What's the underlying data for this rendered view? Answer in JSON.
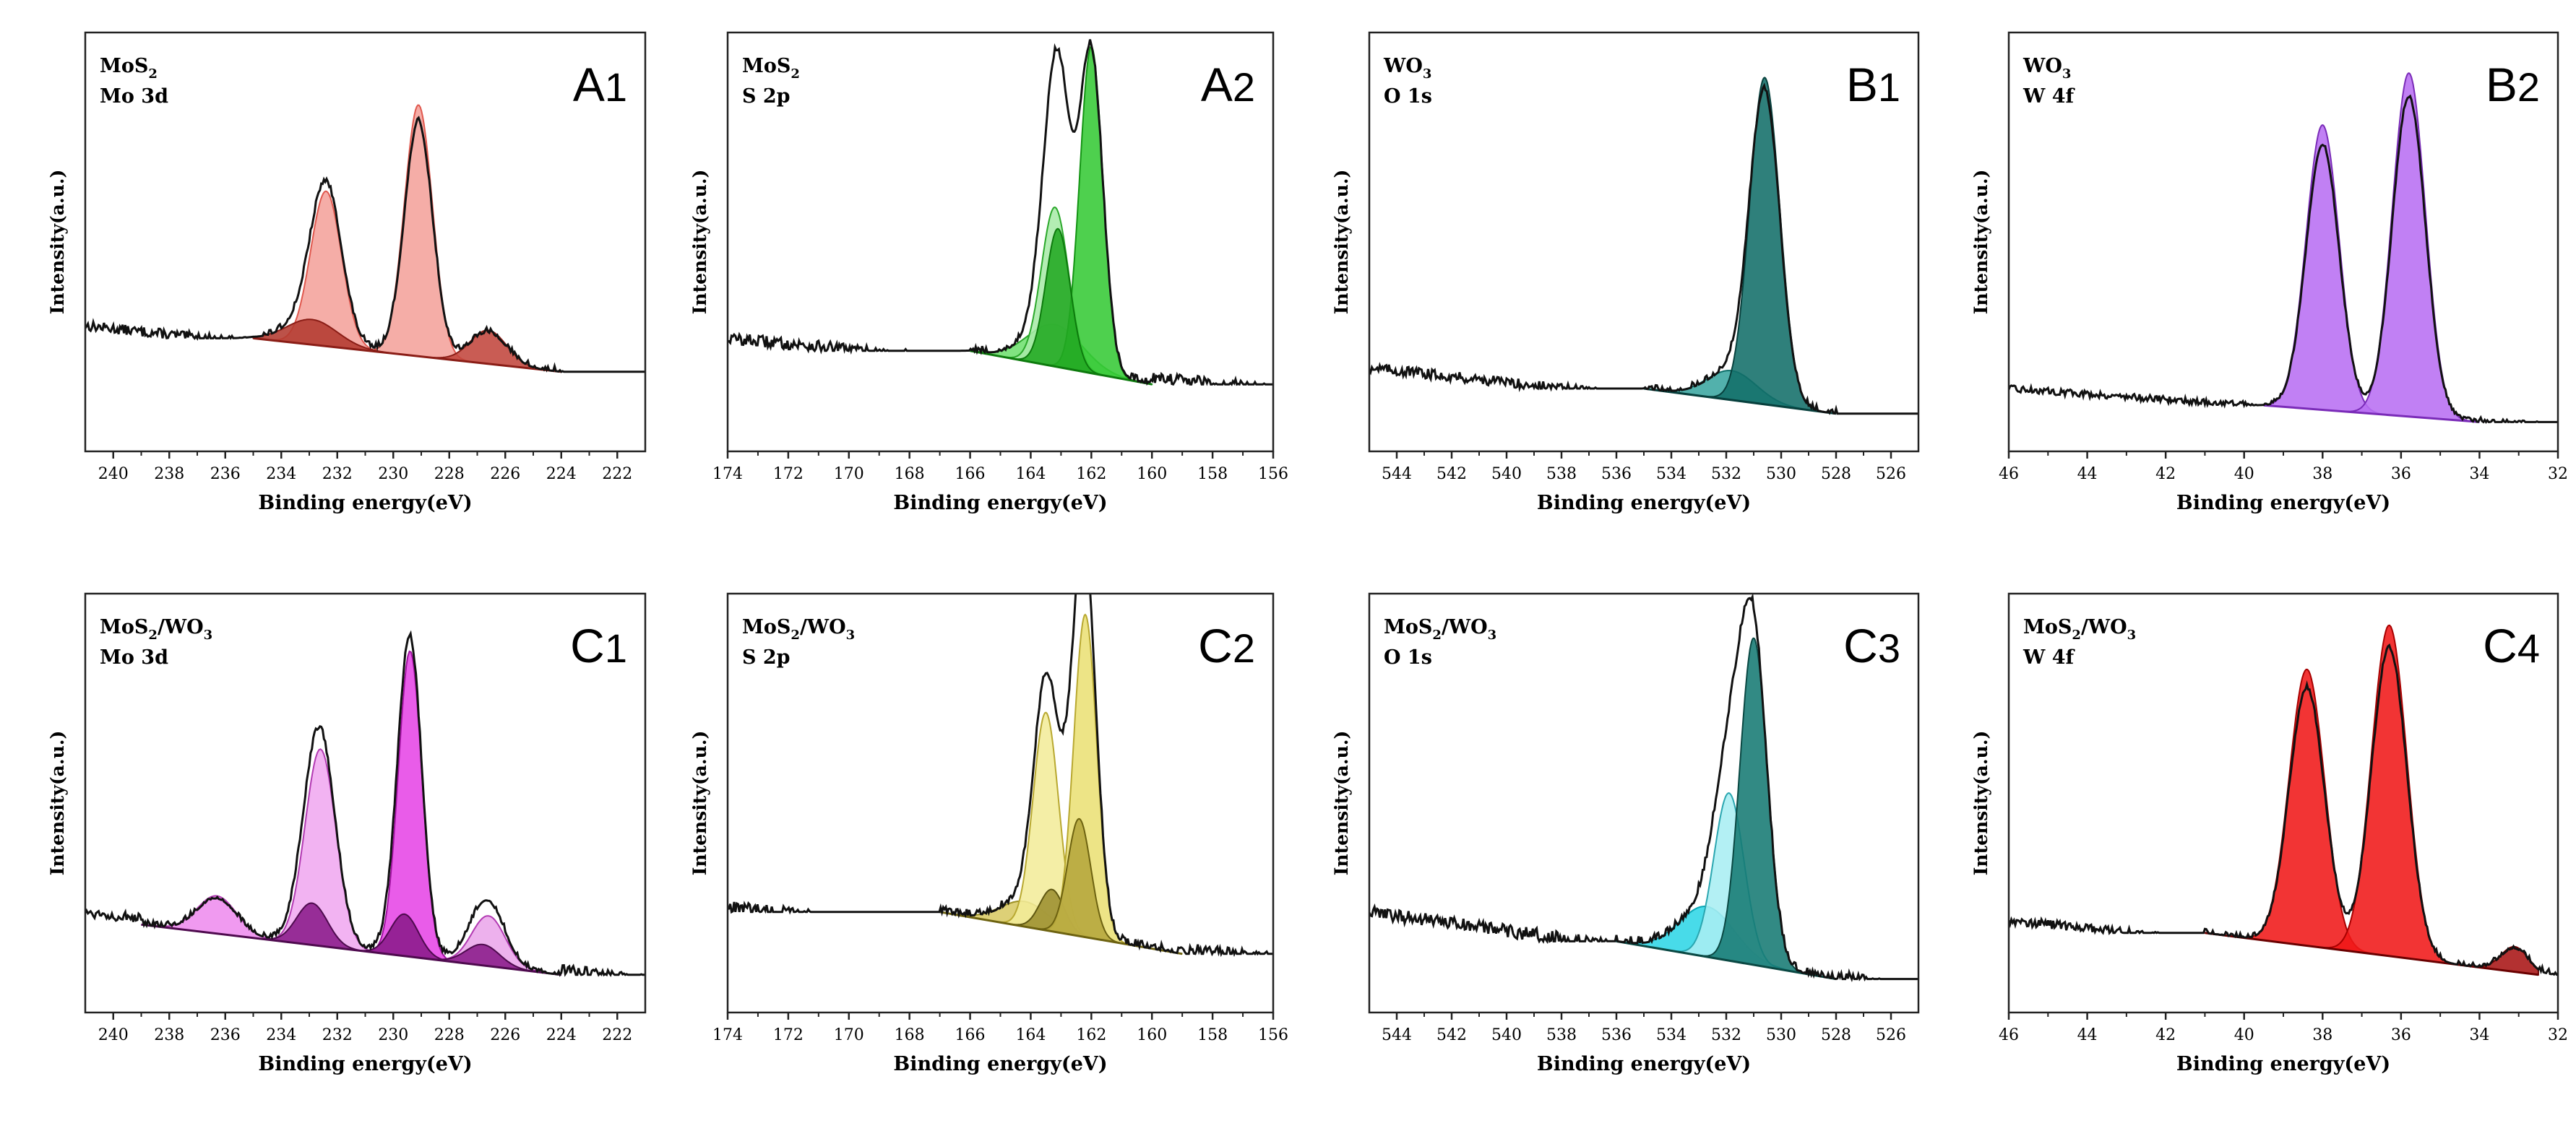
{
  "figure": {
    "xlabel": "Binding energy(eV)",
    "ylabel": "Intensity(a.u.)"
  },
  "chart_data": [
    {
      "id": "A1",
      "id_letter": "A",
      "id_num": "1",
      "label_line1": {
        "base": "MoS",
        "sub": "2",
        "rest": ""
      },
      "label_line2": "Mo 3d",
      "type": "line",
      "xlim": [
        241,
        221
      ],
      "ticks": [
        "240",
        "238",
        "236",
        "234",
        "232",
        "230",
        "228",
        "226",
        "224",
        "222"
      ],
      "tick_values": [
        240,
        238,
        236,
        234,
        232,
        230,
        228,
        226,
        224,
        222
      ],
      "ylim": [
        0,
        1
      ],
      "raw": {
        "start": 0.3,
        "end": 0.16,
        "noise": 0.012
      },
      "background": {
        "from": 235,
        "to": 224,
        "y0": 0.27,
        "y1": 0.19
      },
      "components": [
        {
          "center": 232.4,
          "height": 0.37,
          "sigma": 0.55,
          "color": "#f4a29b",
          "edge": "#e0584e"
        },
        {
          "center": 229.1,
          "height": 0.6,
          "sigma": 0.5,
          "color": "#f4a29b",
          "edge": "#e0584e"
        },
        {
          "center": 226.6,
          "height": 0.08,
          "sigma": 0.65,
          "color": "#c1453c",
          "edge": "#8a1d16"
        },
        {
          "center": 232.9,
          "height": 0.06,
          "sigma": 0.9,
          "color": "#b33a30",
          "edge": "#8a1d16"
        }
      ]
    },
    {
      "id": "A2",
      "id_letter": "A",
      "id_num": "2",
      "label_line1": {
        "base": "MoS",
        "sub": "2",
        "rest": ""
      },
      "label_line2": "S 2p",
      "type": "line",
      "xlim": [
        174,
        156
      ],
      "ticks": [
        "174",
        "172",
        "170",
        "168",
        "166",
        "164",
        "162",
        "160",
        "158",
        "156"
      ],
      "tick_values": [
        174,
        172,
        170,
        168,
        166,
        164,
        162,
        160,
        158,
        156
      ],
      "ylim": [
        0,
        1
      ],
      "raw": {
        "start": 0.27,
        "end": 0.15,
        "noise": 0.014
      },
      "background": {
        "from": 166,
        "to": 160,
        "y0": 0.24,
        "y1": 0.16
      },
      "components": [
        {
          "center": 163.2,
          "height": 0.1,
          "sigma": 0.9,
          "color": "#6fe06f",
          "edge": "#2aa82a"
        },
        {
          "center": 163.2,
          "height": 0.38,
          "sigma": 0.45,
          "color": "#a8eba8",
          "edge": "#2aa82a"
        },
        {
          "center": 162.0,
          "height": 0.78,
          "sigma": 0.38,
          "color": "#35c935",
          "edge": "#139413"
        },
        {
          "center": 163.1,
          "height": 0.33,
          "sigma": 0.4,
          "color": "#22a822",
          "edge": "#0d7a0d"
        }
      ]
    },
    {
      "id": "B1",
      "id_letter": "B",
      "id_num": "1",
      "label_line1": {
        "base": "WO",
        "sub": "3",
        "rest": ""
      },
      "label_line2": "O 1s",
      "type": "line",
      "xlim": [
        545,
        525
      ],
      "ticks": [
        "544",
        "542",
        "540",
        "538",
        "536",
        "534",
        "532",
        "530",
        "528",
        "526"
      ],
      "tick_values": [
        544,
        542,
        540,
        538,
        536,
        534,
        532,
        530,
        528,
        526
      ],
      "ylim": [
        0,
        1
      ],
      "raw": {
        "start": 0.2,
        "end": 0.06,
        "noise": 0.012
      },
      "background": {
        "from": 535,
        "to": 528,
        "y0": 0.15,
        "y1": 0.09
      },
      "components": [
        {
          "center": 531.8,
          "height": 0.07,
          "sigma": 0.9,
          "color": "#3aa6a0",
          "edge": "#0c6d68"
        },
        {
          "center": 530.6,
          "height": 0.78,
          "sigma": 0.55,
          "color": "#126e69",
          "edge": "#07403d"
        }
      ]
    },
    {
      "id": "B2",
      "id_letter": "B",
      "id_num": "2",
      "label_line1": {
        "base": "WO",
        "sub": "3",
        "rest": ""
      },
      "label_line2": "W 4f",
      "type": "line",
      "xlim": [
        46,
        32
      ],
      "ticks": [
        "46",
        "44",
        "42",
        "40",
        "38",
        "36",
        "34",
        "32"
      ],
      "tick_values": [
        46,
        44,
        42,
        40,
        38,
        36,
        34,
        32
      ],
      "ylim": [
        0,
        1
      ],
      "raw": {
        "start": 0.15,
        "end": 0.06,
        "noise": 0.008
      },
      "background": {
        "from": 39.5,
        "to": 34,
        "y0": 0.11,
        "y1": 0.07
      },
      "components": [
        {
          "center": 38.0,
          "height": 0.68,
          "sigma": 0.42,
          "color": "#b86ef2",
          "edge": "#7a2bb8"
        },
        {
          "center": 35.8,
          "height": 0.82,
          "sigma": 0.42,
          "color": "#b86ef2",
          "edge": "#7a2bb8"
        }
      ]
    },
    {
      "id": "C1",
      "id_letter": "C",
      "id_num": "1",
      "label_line1": {
        "base": "MoS",
        "sub": "2",
        "rest": "/WO",
        "sub2": "3"
      },
      "label_line2": "Mo 3d",
      "type": "line",
      "xlim": [
        241,
        221
      ],
      "ticks": [
        "240",
        "238",
        "236",
        "234",
        "232",
        "230",
        "228",
        "226",
        "224",
        "222"
      ],
      "tick_values": [
        240,
        238,
        236,
        234,
        232,
        230,
        228,
        226,
        224,
        222
      ],
      "ylim": [
        0,
        1
      ],
      "raw": {
        "start": 0.24,
        "end": 0.08,
        "noise": 0.012
      },
      "background": {
        "from": 239,
        "to": 224,
        "y0": 0.21,
        "y1": 0.09
      },
      "components": [
        {
          "center": 236.3,
          "height": 0.09,
          "sigma": 0.7,
          "color": "#ee8cee",
          "edge": "#b23ab2"
        },
        {
          "center": 232.6,
          "height": 0.47,
          "sigma": 0.55,
          "color": "#f0a8f0",
          "edge": "#b23ab2"
        },
        {
          "center": 232.9,
          "height": 0.1,
          "sigma": 0.55,
          "color": "#8a1a8a",
          "edge": "#4e0a4e"
        },
        {
          "center": 229.4,
          "height": 0.73,
          "sigma": 0.42,
          "color": "#e645e6",
          "edge": "#a012a0"
        },
        {
          "center": 229.6,
          "height": 0.1,
          "sigma": 0.5,
          "color": "#8a1a8a",
          "edge": "#4e0a4e"
        },
        {
          "center": 226.6,
          "height": 0.12,
          "sigma": 0.6,
          "color": "#eaa6ea",
          "edge": "#b23ab2"
        },
        {
          "center": 226.8,
          "height": 0.05,
          "sigma": 0.6,
          "color": "#8a1a8a",
          "edge": "#4e0a4e"
        }
      ]
    },
    {
      "id": "C2",
      "id_letter": "C",
      "id_num": "2",
      "label_line1": {
        "base": "MoS",
        "sub": "2",
        "rest": "/WO",
        "sub2": "3"
      },
      "label_line2": "S 2p",
      "type": "line",
      "xlim": [
        174,
        156
      ],
      "ticks": [
        "174",
        "172",
        "170",
        "168",
        "166",
        "164",
        "162",
        "160",
        "158",
        "156"
      ],
      "tick_values": [
        174,
        172,
        170,
        168,
        166,
        164,
        162,
        160,
        158,
        156
      ],
      "ylim": [
        0,
        1
      ],
      "raw": {
        "start": 0.25,
        "end": 0.13,
        "noise": 0.016
      },
      "background": {
        "from": 167,
        "to": 159,
        "y0": 0.24,
        "y1": 0.14
      },
      "components": [
        {
          "center": 164.2,
          "height": 0.06,
          "sigma": 0.8,
          "color": "#d8c964",
          "edge": "#9c8f22"
        },
        {
          "center": 163.5,
          "height": 0.52,
          "sigma": 0.42,
          "color": "#f2ec9a",
          "edge": "#b8a830"
        },
        {
          "center": 163.3,
          "height": 0.1,
          "sigma": 0.4,
          "color": "#9c9030",
          "edge": "#5e5610"
        },
        {
          "center": 162.2,
          "height": 0.77,
          "sigma": 0.38,
          "color": "#ebe075",
          "edge": "#b8a830"
        },
        {
          "center": 162.4,
          "height": 0.28,
          "sigma": 0.38,
          "color": "#b5a63c",
          "edge": "#6d6210"
        }
      ]
    },
    {
      "id": "C3",
      "id_letter": "C",
      "id_num": "3",
      "label_line1": {
        "base": "MoS",
        "sub": "2",
        "rest": "/WO",
        "sub2": "3"
      },
      "label_line2": "O 1s",
      "type": "line",
      "xlim": [
        545,
        525
      ],
      "ticks": [
        "544",
        "542",
        "540",
        "538",
        "536",
        "534",
        "532",
        "530",
        "528",
        "526"
      ],
      "tick_values": [
        544,
        542,
        540,
        538,
        536,
        534,
        532,
        530,
        528,
        526
      ],
      "ylim": [
        0,
        1
      ],
      "raw": {
        "start": 0.24,
        "end": 0.06,
        "noise": 0.016
      },
      "background": {
        "from": 536,
        "to": 528,
        "y0": 0.17,
        "y1": 0.08
      },
      "components": [
        {
          "center": 532.7,
          "height": 0.12,
          "sigma": 1.0,
          "color": "#2fd6e6",
          "edge": "#0aa6b5"
        },
        {
          "center": 531.9,
          "height": 0.4,
          "sigma": 0.55,
          "color": "#a8eef2",
          "edge": "#2aa6b0"
        },
        {
          "center": 531.0,
          "height": 0.78,
          "sigma": 0.5,
          "color": "#167a73",
          "edge": "#0a4843"
        }
      ]
    },
    {
      "id": "C4",
      "id_letter": "C",
      "id_num": "4",
      "label_line1": {
        "base": "MoS",
        "sub": "2",
        "rest": "/WO",
        "sub2": "3"
      },
      "label_line2": "W 4f",
      "type": "line",
      "xlim": [
        46,
        32
      ],
      "ticks": [
        "46",
        "44",
        "42",
        "40",
        "38",
        "36",
        "34",
        "32"
      ],
      "tick_values": [
        46,
        44,
        42,
        40,
        38,
        36,
        34,
        32
      ],
      "ylim": [
        0,
        1
      ],
      "raw": {
        "start": 0.22,
        "end": 0.09,
        "noise": 0.01
      },
      "background": {
        "from": 41,
        "to": 32.5,
        "y0": 0.19,
        "y1": 0.09
      },
      "components": [
        {
          "center": 38.4,
          "height": 0.66,
          "sigma": 0.45,
          "color": "#f01818",
          "edge": "#a80000"
        },
        {
          "center": 36.3,
          "height": 0.79,
          "sigma": 0.45,
          "color": "#f01818",
          "edge": "#a80000"
        },
        {
          "center": 33.1,
          "height": 0.06,
          "sigma": 0.35,
          "color": "#a81414",
          "edge": "#6a0000"
        }
      ]
    }
  ]
}
